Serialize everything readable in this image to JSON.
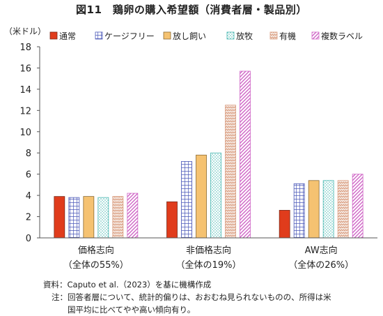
{
  "chart_data": {
    "type": "bar",
    "title": "図11　鶏卵の購入希望額（消費者層・製品別）",
    "ylabel": "（米ドル）",
    "ylim": [
      0,
      18
    ],
    "yticks": [
      0,
      2,
      4,
      6,
      8,
      10,
      12,
      14,
      16,
      18
    ],
    "grid": false,
    "legend_position": "top",
    "categories": [
      {
        "line1": "価格志向",
        "line2": "（全体の55%）"
      },
      {
        "line1": "非価格志向",
        "line2": "（全体の19%）"
      },
      {
        "line1": "AW志向",
        "line2": "（全体の26%）"
      }
    ],
    "series": [
      {
        "name": "通常",
        "values": [
          3.9,
          3.4,
          2.6
        ],
        "color": "#e03c1c",
        "pattern": "solid"
      },
      {
        "name": "ケージフリー",
        "values": [
          3.8,
          7.2,
          5.1
        ],
        "color": "#4a57b8",
        "pattern": "grid"
      },
      {
        "name": "放し飼い",
        "values": [
          3.9,
          7.8,
          5.4
        ],
        "color": "#f5c271",
        "pattern": "solid"
      },
      {
        "name": "放牧",
        "values": [
          3.8,
          8.0,
          5.4
        ],
        "color": "#47b7b1",
        "pattern": "dots"
      },
      {
        "name": "有機",
        "values": [
          3.9,
          12.5,
          5.4
        ],
        "color": "#d99a7c",
        "pattern": "zigzag"
      },
      {
        "name": "複数ラベル",
        "values": [
          4.2,
          15.7,
          6.0
        ],
        "color": "#cf65c6",
        "pattern": "hatch"
      }
    ]
  },
  "footer": {
    "source": "資料：Caputo et al.（2023）を基に機構作成",
    "note_label": "注：",
    "note_line1": "回答者層について、統計的偏りは、おおむね見られないものの、所得は米",
    "note_line2": "国平均に比べてやや高い傾向有り。"
  }
}
